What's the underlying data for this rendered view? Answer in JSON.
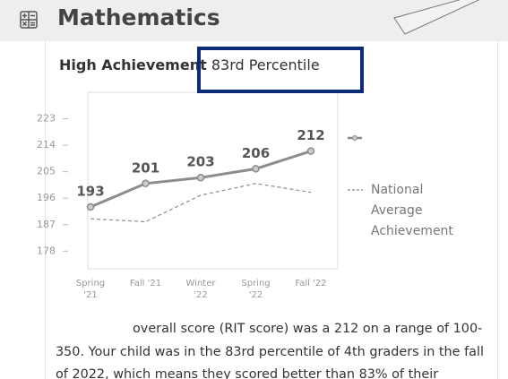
{
  "header": {
    "title": "Mathematics"
  },
  "chart_data": {
    "type": "line",
    "title": "High Achievement",
    "subtitle": "83rd Percentile",
    "categories": [
      "Spring '21",
      "Fall '21",
      "Winter '22",
      "Spring '22",
      "Fall '22"
    ],
    "series": [
      {
        "color": "#8c8c8c",
        "values": [
          193,
          201,
          203,
          206,
          212
        ]
      },
      {
        "name": "National Average Achievement",
        "color": "#8c8c8c",
        "values": [
          189,
          188,
          197,
          201,
          198
        ]
      }
    ],
    "ylim": [
      172,
      232
    ],
    "yticks": [
      178,
      187,
      196,
      205,
      214,
      223
    ],
    "grid": false
  },
  "body": {
    "text": "overall score (RIT score) was a 212 on a range of 100-350. Your child was in the 83rd percentile of 4th graders in the fall of 2022, which means they scored better than 83% of their"
  }
}
